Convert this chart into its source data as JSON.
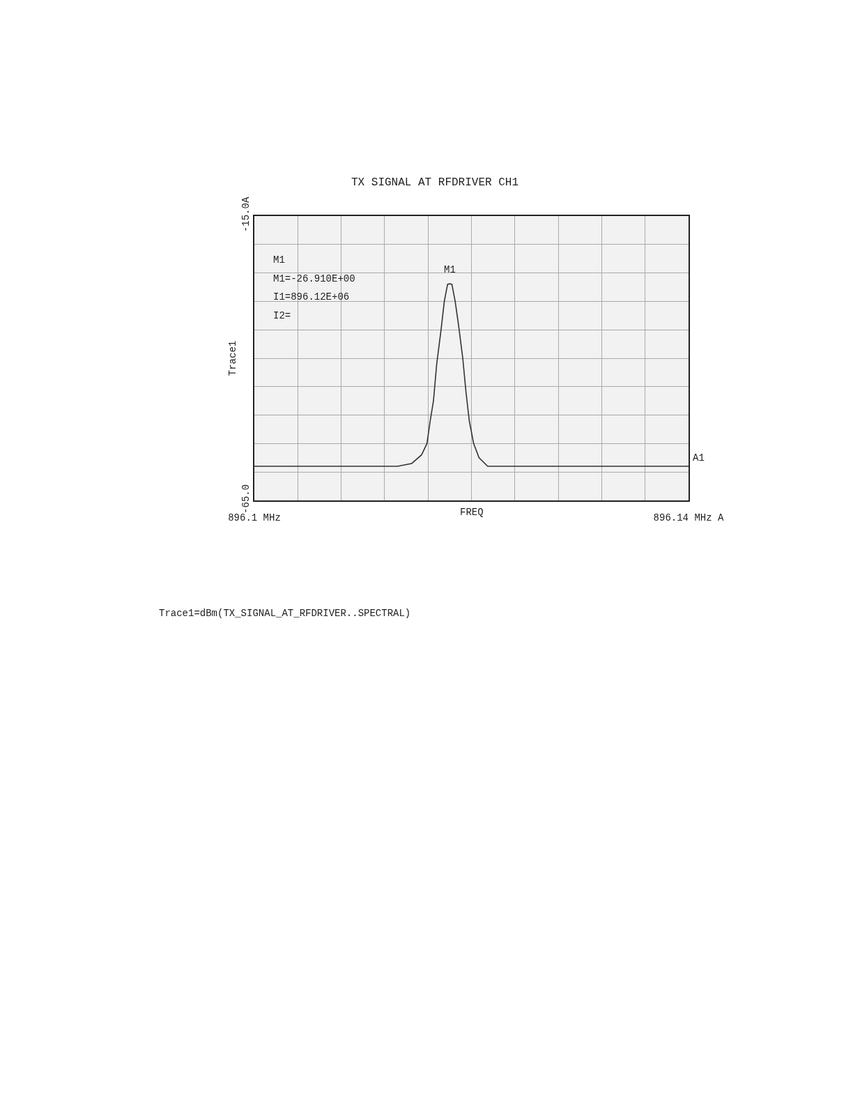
{
  "chart_data": {
    "type": "line",
    "title": "TX SIGNAL AT RFDRIVER CH1",
    "xlabel": "FREQ",
    "ylabel": "Trace1",
    "x": [
      896.1,
      896.1132,
      896.1145,
      896.1154,
      896.1159,
      896.1162,
      896.1165,
      896.1168,
      896.1172,
      896.1175,
      896.1178,
      896.118,
      896.1182,
      896.1185,
      896.1188,
      896.1192,
      896.1195,
      896.1198,
      896.1202,
      896.1207,
      896.1215,
      896.1228,
      896.14
    ],
    "series": [
      {
        "color": "#333333",
        "values": [
          -59,
          -59,
          -58.5,
          -57,
          -55,
          -51,
          -47.5,
          -41,
          -35,
          -30,
          -27,
          -26.91,
          -27,
          -30,
          -34,
          -40,
          -46,
          -51,
          -55,
          -57.5,
          -59,
          -59,
          -59
        ]
      }
    ],
    "xlim": [
      896.1,
      896.14
    ],
    "ylim": [
      -65,
      -15
    ],
    "xticks": [
      {
        "value": 896.1,
        "label": "896.1 MHz"
      },
      {
        "value": 896.104,
        "label": null
      },
      {
        "value": 896.108,
        "label": null
      },
      {
        "value": 896.112,
        "label": null
      },
      {
        "value": 896.116,
        "label": null
      },
      {
        "value": 896.12,
        "label": null
      },
      {
        "value": 896.124,
        "label": null
      },
      {
        "value": 896.128,
        "label": null
      },
      {
        "value": 896.132,
        "label": null
      },
      {
        "value": 896.136,
        "label": null
      },
      {
        "value": 896.14,
        "label": "896.14 MHz A"
      }
    ],
    "yticks": [
      {
        "value": -65,
        "label": "-65.0"
      },
      {
        "value": -60,
        "label": null
      },
      {
        "value": -55,
        "label": null
      },
      {
        "value": -50,
        "label": null
      },
      {
        "value": -45,
        "label": null
      },
      {
        "value": -40,
        "label": null
      },
      {
        "value": -35,
        "label": null
      },
      {
        "value": -30,
        "label": null
      },
      {
        "value": -25,
        "label": null
      },
      {
        "value": -20,
        "label": null
      },
      {
        "value": -15,
        "label": "-15.0A"
      }
    ],
    "grid": true,
    "legend": false,
    "marker": "none",
    "line_style": "solid",
    "annotations": [
      "M1",
      "M1=-26.910E+00",
      "I1=896.12E+06",
      "I2=",
      {
        "text": "M1",
        "x": 896.118,
        "y": -26.91
      },
      {
        "text": "A1",
        "x": 896.14,
        "y": -59
      },
      "Trace1=dBm(TX_SIGNAL_AT_RFDRIVER..SPECTRAL)"
    ]
  }
}
